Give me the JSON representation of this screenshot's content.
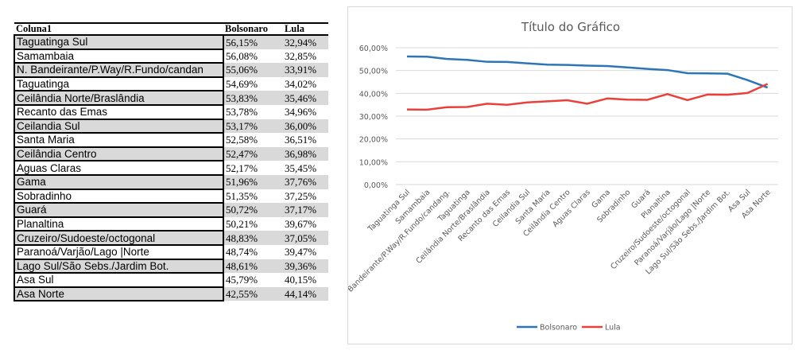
{
  "table": {
    "headers": [
      "Coluna1",
      "Bolsonaro",
      "Lula"
    ],
    "rows": [
      [
        "Taguatinga Sul",
        "56,15%",
        "32,94%"
      ],
      [
        "Samambaia",
        "56,08%",
        "32,85%"
      ],
      [
        "N. Bandeirante/P.Way/R.Fundo/candan",
        "55,06%",
        "33,91%"
      ],
      [
        "Taguatinga",
        "54,69%",
        "34,02%"
      ],
      [
        "Ceilândia Norte/Braslândia",
        "53,83%",
        "35,46%"
      ],
      [
        "Recanto das Emas",
        "53,78%",
        "34,96%"
      ],
      [
        "Ceilandia Sul",
        "53,17%",
        "36,00%"
      ],
      [
        "Santa Maria",
        "52,58%",
        "36,51%"
      ],
      [
        "Ceilândia Centro",
        "52,47%",
        "36,98%"
      ],
      [
        "Aguas Claras",
        "52,17%",
        "35,45%"
      ],
      [
        "Gama",
        "51,96%",
        "37,76%"
      ],
      [
        "Sobradinho",
        "51,35%",
        "37,25%"
      ],
      [
        "Guará",
        "50,72%",
        "37,17%"
      ],
      [
        "Planaltina",
        "50,21%",
        "39,67%"
      ],
      [
        "Cruzeiro/Sudoeste/octogonal",
        "48,83%",
        "37,05%"
      ],
      [
        "Paranoá/Varjão/Lago |Norte",
        "48,74%",
        "39,47%"
      ],
      [
        "Lago Sul/São Sebs./Jardim Bot.",
        "48,61%",
        "39,36%"
      ],
      [
        "Asa Sul",
        "45,79%",
        "40,15%"
      ],
      [
        "Asa Norte",
        "42,55%",
        "44,14%"
      ]
    ]
  },
  "chart_data": {
    "type": "line",
    "title": "Título do Gráfico",
    "xlabel": "",
    "ylabel": "",
    "ylim": [
      0,
      60
    ],
    "yticks": [
      "0,00%",
      "10,00%",
      "20,00%",
      "30,00%",
      "40,00%",
      "50,00%",
      "60,00%"
    ],
    "grid": true,
    "legend": "bottom",
    "categories": [
      "Taguatinga Sul",
      "Samambaia",
      "N. Bandeirante/P.Way/R.Fundo/candang.",
      "Taguatinga",
      "Ceilândia Norte/Braslândia",
      "Recanto das Emas",
      "Ceilandia Sul",
      "Santa Maria",
      "Ceilândia Centro",
      "Aguas Claras",
      "Gama",
      "Sobradinho",
      "Guará",
      "Planaltina",
      "Cruzeiro/Sudoeste/octogonal",
      "Paranoá/Varjão/Lago |Norte",
      "Lago Sul/São Sebs./Jardim Bot.",
      "Asa Sul",
      "Asa Norte"
    ],
    "series": [
      {
        "name": "Bolsonaro",
        "color": "#2e75b6",
        "values": [
          56.15,
          56.08,
          55.06,
          54.69,
          53.83,
          53.78,
          53.17,
          52.58,
          52.47,
          52.17,
          51.96,
          51.35,
          50.72,
          50.21,
          48.83,
          48.74,
          48.61,
          45.79,
          42.55
        ]
      },
      {
        "name": "Lula",
        "color": "#e8413c",
        "values": [
          32.94,
          32.85,
          33.91,
          34.02,
          35.46,
          34.96,
          36.0,
          36.51,
          36.98,
          35.45,
          37.76,
          37.25,
          37.17,
          39.67,
          37.05,
          39.47,
          39.36,
          40.15,
          44.14
        ]
      }
    ]
  }
}
